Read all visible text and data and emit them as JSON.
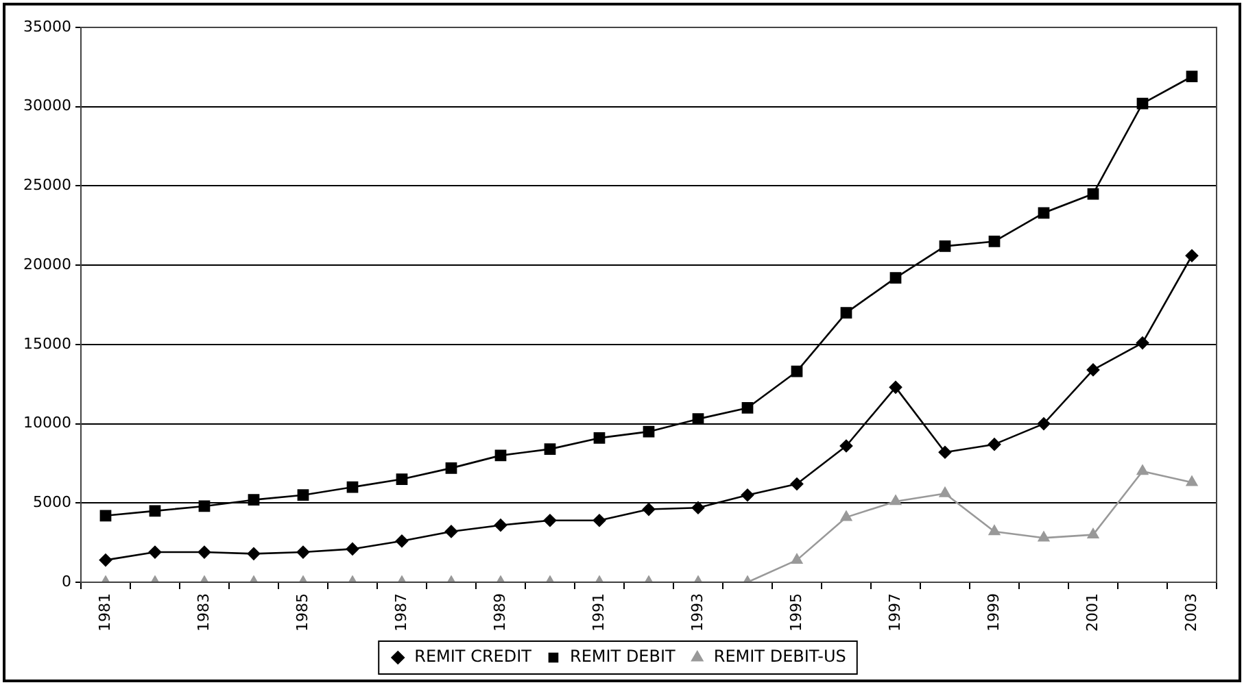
{
  "chart_data": {
    "type": "line",
    "categories": [
      "1981",
      null,
      "1983",
      null,
      "1985",
      null,
      "1987",
      null,
      "1989",
      null,
      "1991",
      null,
      "1993",
      null,
      "1995",
      null,
      "1997",
      null,
      "1999",
      null,
      "2001",
      null,
      "2003"
    ],
    "series": [
      {
        "name": "REMIT CREDIT",
        "color": "#000000",
        "marker": "diamond",
        "values": [
          1400,
          1900,
          1900,
          1800,
          1900,
          2100,
          2600,
          3200,
          3600,
          3900,
          3900,
          4600,
          4700,
          5500,
          6200,
          8600,
          12300,
          8200,
          8700,
          10000,
          13400,
          15100,
          20600
        ]
      },
      {
        "name": "REMIT DEBIT",
        "color": "#000000",
        "marker": "square",
        "values": [
          4200,
          4500,
          4800,
          5200,
          5500,
          6000,
          6500,
          7200,
          8000,
          8400,
          9100,
          9500,
          10300,
          11000,
          13300,
          17000,
          19200,
          21200,
          21500,
          23300,
          24500,
          30200,
          31900
        ]
      },
      {
        "name": "REMIT DEBIT-US",
        "color": "#999999",
        "marker": "triangle",
        "values": [
          0,
          0,
          0,
          0,
          0,
          0,
          0,
          0,
          0,
          0,
          0,
          0,
          0,
          0,
          1400,
          4100,
          5100,
          5600,
          3200,
          2800,
          3000,
          7000,
          6300
        ]
      }
    ],
    "ylim": [
      0,
      35000
    ],
    "yticks": [
      0,
      5000,
      10000,
      15000,
      20000,
      25000,
      30000,
      35000
    ],
    "grid": "y",
    "legend": "bottom",
    "line_style": "solid"
  }
}
